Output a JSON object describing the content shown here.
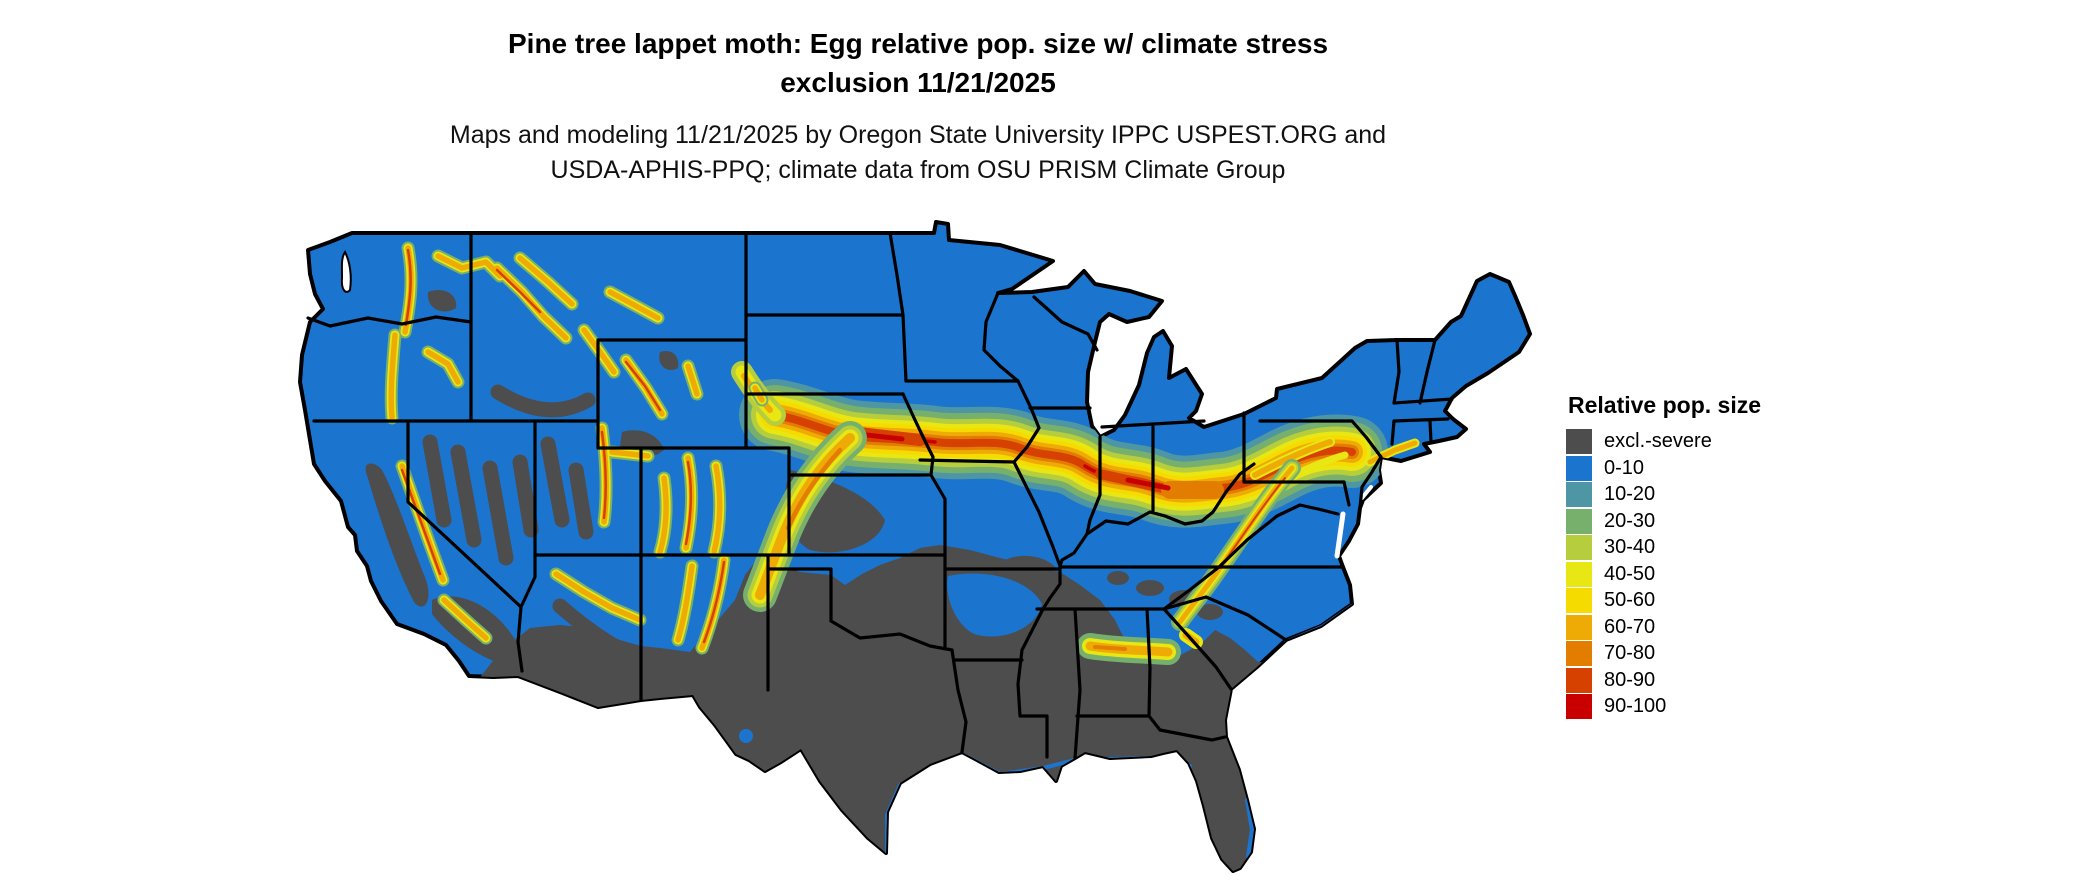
{
  "header": {
    "title_line1": "Pine tree lappet moth: Egg relative pop. size w/ climate stress",
    "title_line2": "exclusion 11/21/2025",
    "subtitle_line1": "Maps and modeling 11/21/2025 by Oregon State University IPPC USPEST.ORG and",
    "subtitle_line2": "USDA-APHIS-PPQ; climate data from OSU PRISM Climate Group"
  },
  "legend": {
    "title": "Relative pop. size",
    "entries": [
      {
        "label": "excl.-severe",
        "color": "#4D4D4D"
      },
      {
        "label": "0-10",
        "color": "#1B74CE"
      },
      {
        "label": "10-20",
        "color": "#4E96A3"
      },
      {
        "label": "20-30",
        "color": "#77B06C"
      },
      {
        "label": "30-40",
        "color": "#B6CE3E"
      },
      {
        "label": "40-50",
        "color": "#E8E714"
      },
      {
        "label": "50-60",
        "color": "#F6DB00"
      },
      {
        "label": "60-70",
        "color": "#EFAB05"
      },
      {
        "label": "70-80",
        "color": "#E37D00"
      },
      {
        "label": "80-90",
        "color": "#D64100"
      },
      {
        "label": "90-100",
        "color": "#C90000"
      }
    ]
  },
  "map": {
    "region": "Continental United States",
    "border_color": "#000000",
    "water_color": "#FFFFFF"
  }
}
